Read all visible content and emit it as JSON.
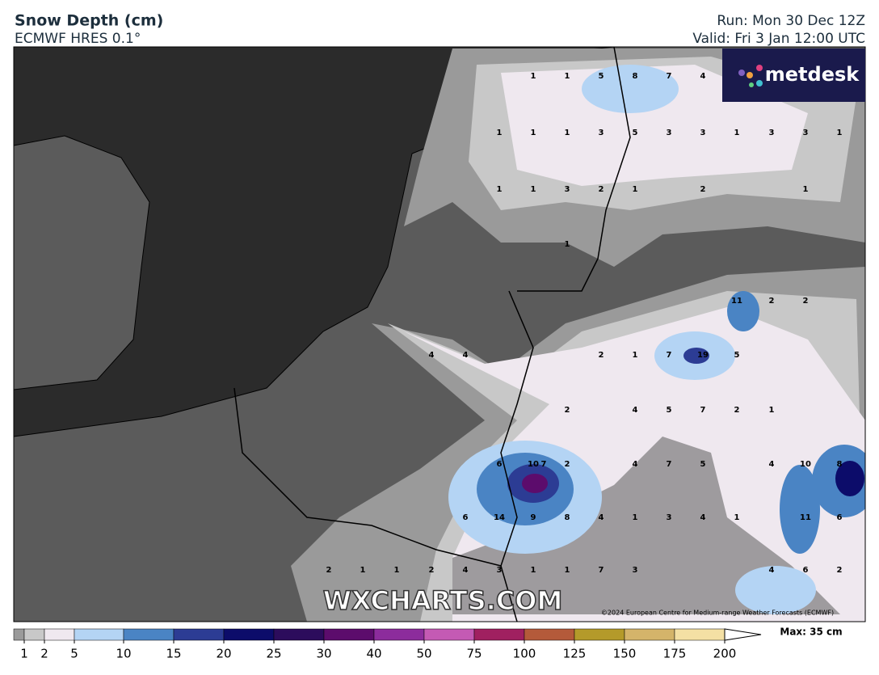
{
  "header": {
    "title": "Snow Depth (cm)",
    "subtitle": "ECMWF HRES 0.1°",
    "run": "Run: Mon 30 Dec 12Z",
    "valid": "Valid: Fri 3 Jan 12:00 UTC"
  },
  "logo": "metdesk",
  "watermark": "WXCHARTS.COM",
  "copyright": "©2024 European Centre for Medium-range Weather Forecasts (ECMWF)",
  "map_labels": [
    [
      1,
      1,
      5,
      8,
      7,
      4
    ],
    [
      1,
      1,
      1,
      3,
      5,
      3,
      3,
      1,
      3,
      3,
      1
    ],
    [
      1,
      1,
      3,
      2,
      1,
      2,
      1
    ],
    [
      1
    ],
    [
      11,
      2,
      2
    ],
    [
      4,
      4,
      2,
      1,
      7,
      19,
      5
    ],
    [
      2,
      4,
      5,
      7,
      2,
      1
    ],
    [
      6,
      10,
      7,
      2,
      4,
      7,
      5,
      4,
      10,
      8
    ],
    [
      6,
      14,
      9,
      8,
      4,
      1,
      3,
      4,
      1,
      11,
      6
    ],
    [
      2,
      1,
      1,
      2,
      4,
      3,
      1,
      1,
      7,
      3,
      4,
      6,
      2
    ]
  ],
  "colorbar": {
    "ticks": [
      1,
      2,
      5,
      10,
      15,
      20,
      25,
      30,
      40,
      50,
      75,
      100,
      125,
      150,
      175,
      200
    ],
    "colors": [
      "#9a9a9a",
      "#c8c8c8",
      "#efe8ef",
      "#b4d4f4",
      "#4a84c4",
      "#2c3c94",
      "#0c0c6a",
      "#2c0c5c",
      "#5c0c6c",
      "#8c2c9c",
      "#c45ab4",
      "#a02060",
      "#b45a3a",
      "#b49a2a",
      "#d4b46a",
      "#f4e0a4"
    ],
    "max": "Max: 35 cm"
  }
}
